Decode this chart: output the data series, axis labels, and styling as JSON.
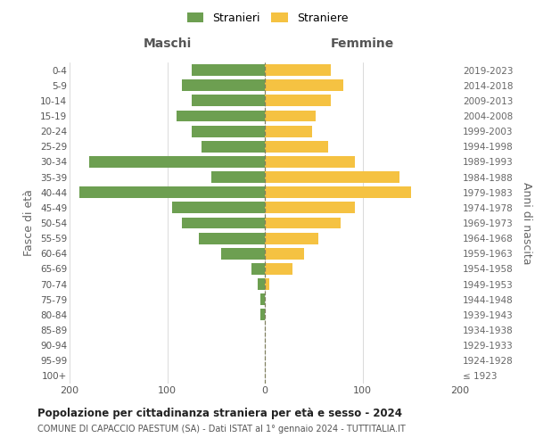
{
  "age_groups": [
    "100+",
    "95-99",
    "90-94",
    "85-89",
    "80-84",
    "75-79",
    "70-74",
    "65-69",
    "60-64",
    "55-59",
    "50-54",
    "45-49",
    "40-44",
    "35-39",
    "30-34",
    "25-29",
    "20-24",
    "15-19",
    "10-14",
    "5-9",
    "0-4"
  ],
  "birth_years": [
    "≤ 1923",
    "1924-1928",
    "1929-1933",
    "1934-1938",
    "1939-1943",
    "1944-1948",
    "1949-1953",
    "1954-1958",
    "1959-1963",
    "1964-1968",
    "1969-1973",
    "1974-1978",
    "1979-1983",
    "1984-1988",
    "1989-1993",
    "1994-1998",
    "1999-2003",
    "2004-2008",
    "2009-2013",
    "2014-2018",
    "2019-2023"
  ],
  "maschi": [
    0,
    0,
    0,
    0,
    5,
    5,
    7,
    14,
    45,
    68,
    85,
    95,
    190,
    55,
    180,
    65,
    75,
    90,
    75,
    85,
    75
  ],
  "femmine": [
    0,
    0,
    0,
    0,
    0,
    0,
    5,
    28,
    40,
    55,
    78,
    92,
    150,
    138,
    92,
    65,
    48,
    52,
    68,
    80,
    68
  ],
  "male_color": "#6d9f51",
  "female_color": "#f5c242",
  "grid_color": "#cccccc",
  "center_line_color": "#808060",
  "title": "Popolazione per cittadinanza straniera per età e sesso - 2024",
  "subtitle": "COMUNE DI CAPACCIO PAESTUM (SA) - Dati ISTAT al 1° gennaio 2024 - TUTTITALIA.IT",
  "xlabel_left": "Maschi",
  "xlabel_right": "Femmine",
  "ylabel_left": "Fasce di età",
  "ylabel_right": "Anni di nascita",
  "legend_male": "Stranieri",
  "legend_female": "Straniere",
  "xlim": 200,
  "bg_color": "#ffffff"
}
